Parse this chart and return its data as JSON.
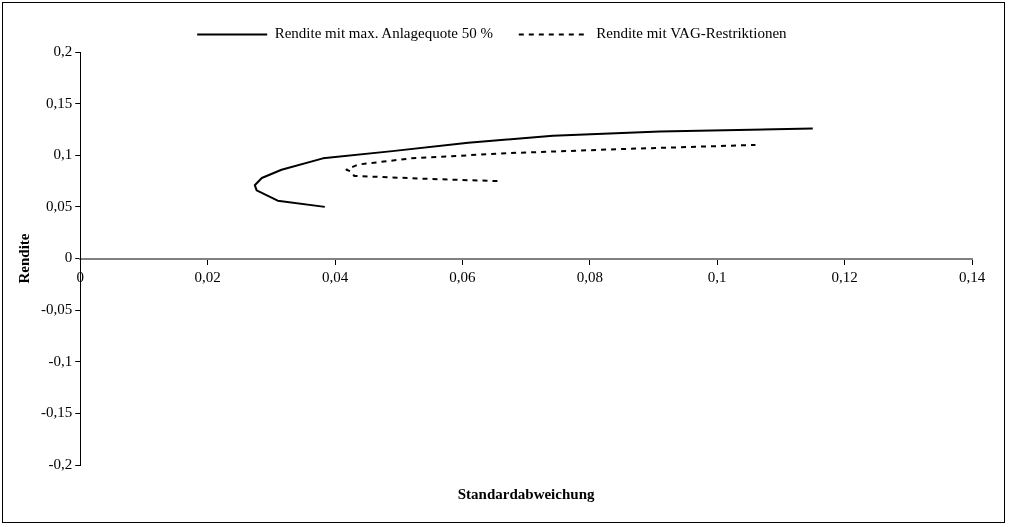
{
  "chart_data": {
    "type": "line",
    "xlabel": "Standardabweichung",
    "ylabel": "Rendite",
    "legend": "top",
    "grid": false,
    "marker": "none",
    "xlim": [
      0,
      0.14
    ],
    "ylim": [
      -0.2,
      0.2
    ],
    "xticks": [
      {
        "value": 0,
        "label": "0"
      },
      {
        "value": 0.02,
        "label": "0,02"
      },
      {
        "value": 0.04,
        "label": "0,04"
      },
      {
        "value": 0.06,
        "label": "0,06"
      },
      {
        "value": 0.08,
        "label": "0,08"
      },
      {
        "value": 0.1,
        "label": "0,1"
      },
      {
        "value": 0.12,
        "label": "0,12"
      },
      {
        "value": 0.14,
        "label": "0,14"
      }
    ],
    "yticks": [
      {
        "value": -0.2,
        "label": "-0,2"
      },
      {
        "value": -0.15,
        "label": "-0,15"
      },
      {
        "value": -0.1,
        "label": "-0,1"
      },
      {
        "value": -0.05,
        "label": "-0,05"
      },
      {
        "value": 0,
        "label": "0"
      },
      {
        "value": 0.05,
        "label": "0,05"
      },
      {
        "value": 0.1,
        "label": "0,1"
      },
      {
        "value": 0.15,
        "label": "0,15"
      },
      {
        "value": 0.2,
        "label": "0,2"
      }
    ],
    "series": [
      {
        "name": "Rendite mit max. Anlagequote 50 %",
        "color": "#000000",
        "line_style": "solid",
        "x": [
          0.0384,
          0.031,
          0.0277,
          0.0274,
          0.0285,
          0.0316,
          0.0381,
          0.049,
          0.0609,
          0.0742,
          0.091,
          0.115
        ],
        "values": [
          0.05,
          0.056,
          0.066,
          0.071,
          0.078,
          0.086,
          0.097,
          0.104,
          0.112,
          0.119,
          0.123,
          0.126
        ]
      },
      {
        "name": "Rendite mit VAG-Restriktionen",
        "color": "#000000",
        "line_style": "dashed",
        "x": [
          0.0655,
          0.055,
          0.043,
          0.0426,
          0.0418,
          0.0436,
          0.052,
          0.067,
          0.085,
          0.106
        ],
        "values": [
          0.075,
          0.077,
          0.08,
          0.084,
          0.086,
          0.091,
          0.097,
          0.102,
          0.106,
          0.11
        ]
      }
    ]
  }
}
